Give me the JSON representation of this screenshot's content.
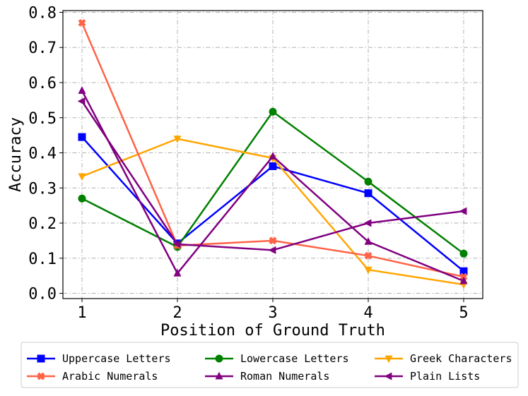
{
  "chart_data": {
    "type": "line",
    "title": "",
    "xlabel": "Position of Ground Truth",
    "ylabel": "Accuracy",
    "x": [
      1,
      2,
      3,
      4,
      5
    ],
    "xlim": [
      0.8,
      5.2
    ],
    "ylim": [
      -0.015,
      0.805
    ],
    "xticks": [
      1,
      2,
      3,
      4,
      5
    ],
    "yticks": [
      0.0,
      0.1,
      0.2,
      0.3,
      0.4,
      0.5,
      0.6,
      0.7,
      0.8
    ],
    "ytick_labels": [
      "0.0",
      "0.1",
      "0.2",
      "0.3",
      "0.4",
      "0.5",
      "0.6",
      "0.7",
      "0.8"
    ],
    "grid": true,
    "legend_position": "bottom-outside",
    "series": [
      {
        "name": "Uppercase Letters",
        "color": "#0000ff",
        "marker": "square",
        "values": [
          0.445,
          0.142,
          0.362,
          0.285,
          0.063
        ]
      },
      {
        "name": "Lowercase Letters",
        "color": "#008000",
        "marker": "circle",
        "values": [
          0.27,
          0.132,
          0.517,
          0.318,
          0.113
        ]
      },
      {
        "name": "Greek Characters",
        "color": "#ffa500",
        "marker": "triangle-down",
        "values": [
          0.333,
          0.44,
          0.385,
          0.067,
          0.025
        ]
      },
      {
        "name": "Arabic Numerals",
        "color": "#ff6347",
        "marker": "x",
        "values": [
          0.77,
          0.136,
          0.15,
          0.107,
          0.047
        ]
      },
      {
        "name": "Roman Numerals",
        "color": "#800080",
        "marker": "triangle-up",
        "values": [
          0.577,
          0.057,
          0.39,
          0.147,
          0.035
        ]
      },
      {
        "name": "Plain Lists",
        "color": "#800080",
        "marker": "triangle-left",
        "values": [
          0.547,
          0.14,
          0.123,
          0.2,
          0.234
        ]
      }
    ]
  }
}
